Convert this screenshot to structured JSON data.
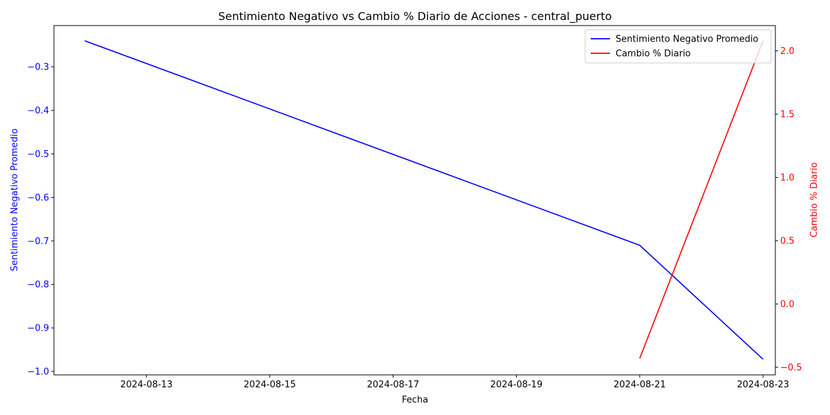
{
  "chart_data": {
    "type": "line",
    "title": "Sentimiento Negativo vs Cambio % Diario de Acciones - central_puerto",
    "xlabel": "Fecha",
    "x_ticks": [
      "2024-08-13",
      "2024-08-15",
      "2024-08-17",
      "2024-08-19",
      "2024-08-21",
      "2024-08-23"
    ],
    "xlim": [
      "2024-08-11",
      "2024-08-23"
    ],
    "left_axis": {
      "label": "Sentimiento Negativo Promedio",
      "color": "#0000ff",
      "ylim": [
        -1.008,
        -0.205
      ],
      "ticks": [
        -1.0,
        -0.9,
        -0.8,
        -0.7,
        -0.6,
        -0.5,
        -0.4,
        -0.3
      ],
      "tick_labels": [
        "−1.0",
        "−0.9",
        "−0.8",
        "−0.7",
        "−0.6",
        "−0.5",
        "−0.4",
        "−0.3"
      ]
    },
    "right_axis": {
      "label": "Cambio % Diario",
      "color": "#ff0000",
      "ylim": [
        -0.56,
        2.2
      ],
      "ticks": [
        -0.5,
        0.0,
        0.5,
        1.0,
        1.5,
        2.0
      ],
      "tick_labels": [
        "−0.5",
        "0.0",
        "0.5",
        "1.0",
        "1.5",
        "2.0"
      ]
    },
    "series": [
      {
        "name": "Sentimiento Negativo Promedio",
        "axis": "left",
        "color": "#0000ff",
        "x": [
          "2024-08-12",
          "2024-08-21",
          "2024-08-23"
        ],
        "values": [
          -0.24,
          -0.71,
          -0.972
        ]
      },
      {
        "name": "Cambio % Diario",
        "axis": "right",
        "color": "#ff0000",
        "x": [
          "2024-08-21",
          "2024-08-23"
        ],
        "values": [
          -0.43,
          2.08
        ]
      }
    ],
    "legend_position": "top-right",
    "grid": false
  }
}
